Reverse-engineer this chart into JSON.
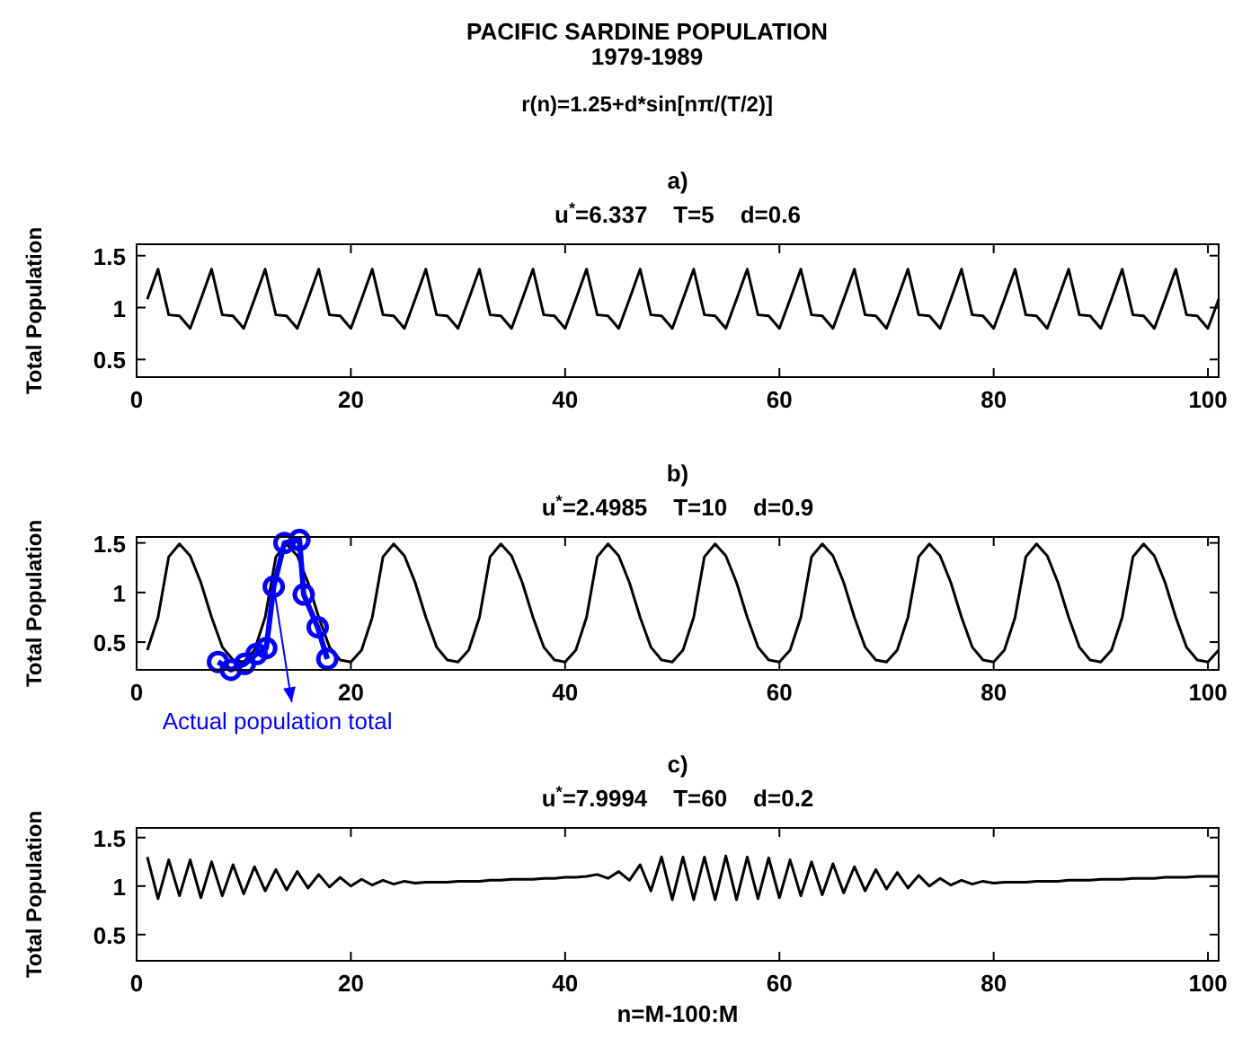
{
  "chart_data": [
    {
      "type": "line",
      "title": "a)",
      "subtitle": "u$^{*}$=6.337    T=5    d=0.6",
      "ylabel": "Total Population",
      "annotations": [
        "PACIFIC SARDINE POPULATION",
        "1979-1989",
        "r(n)=1.25+d*sin[nπ/(T/2)]"
      ],
      "x": [
        1,
        2,
        3,
        4,
        5,
        6,
        7,
        8,
        9,
        10,
        11,
        12,
        13,
        14,
        15,
        16,
        17,
        18,
        19,
        20,
        21,
        22,
        23,
        24,
        25,
        26,
        27,
        28,
        29,
        30,
        31,
        32,
        33,
        34,
        35,
        36,
        37,
        38,
        39,
        40,
        41,
        42,
        43,
        44,
        45,
        46,
        47,
        48,
        49,
        50,
        51,
        52,
        53,
        54,
        55,
        56,
        57,
        58,
        59,
        60,
        61,
        62,
        63,
        64,
        65,
        66,
        67,
        68,
        69,
        70,
        71,
        72,
        73,
        74,
        75,
        76,
        77,
        78,
        79,
        80,
        81,
        82,
        83,
        84,
        85,
        86,
        87,
        88,
        89,
        90,
        91,
        92,
        93,
        94,
        95,
        96,
        97,
        98,
        99,
        100,
        101
      ],
      "series": [
        {
          "color": "#000000",
          "values": [
            1.08,
            1.37,
            0.93,
            0.92,
            0.8,
            1.08,
            1.37,
            0.93,
            0.92,
            0.8,
            1.08,
            1.37,
            0.93,
            0.92,
            0.8,
            1.08,
            1.37,
            0.93,
            0.92,
            0.8,
            1.08,
            1.37,
            0.93,
            0.92,
            0.8,
            1.08,
            1.37,
            0.93,
            0.92,
            0.8,
            1.08,
            1.37,
            0.93,
            0.92,
            0.8,
            1.08,
            1.37,
            0.93,
            0.92,
            0.8,
            1.08,
            1.37,
            0.93,
            0.92,
            0.8,
            1.08,
            1.37,
            0.93,
            0.92,
            0.8,
            1.08,
            1.37,
            0.93,
            0.92,
            0.8,
            1.08,
            1.37,
            0.93,
            0.92,
            0.8,
            1.08,
            1.37,
            0.93,
            0.92,
            0.8,
            1.08,
            1.37,
            0.93,
            0.92,
            0.8,
            1.08,
            1.37,
            0.93,
            0.92,
            0.8,
            1.08,
            1.37,
            0.93,
            0.92,
            0.8,
            1.08,
            1.37,
            0.93,
            0.92,
            0.8,
            1.08,
            1.37,
            0.93,
            0.92,
            0.8,
            1.08,
            1.37,
            0.93,
            0.92,
            0.8,
            1.08,
            1.37,
            0.93,
            0.92,
            0.8,
            1.08
          ]
        }
      ],
      "xlim": [
        0,
        101
      ],
      "xticks": [
        0,
        20,
        40,
        60,
        80,
        100
      ],
      "ylim": [
        0.33,
        1.61
      ],
      "yticks": [
        0.5,
        1,
        1.5
      ],
      "grid": false
    },
    {
      "type": "line",
      "title": "b)",
      "subtitle": "u$^{*}$=2.4985    T=10    d=0.9",
      "ylabel": "Total Population",
      "annotations": [
        {
          "text": "Actual population total",
          "x": 12.8,
          "y": 1.06
        }
      ],
      "x": [
        1,
        2,
        3,
        4,
        5,
        6,
        7,
        8,
        9,
        10,
        11,
        12,
        13,
        14,
        15,
        16,
        17,
        18,
        19,
        20,
        21,
        22,
        23,
        24,
        25,
        26,
        27,
        28,
        29,
        30,
        31,
        32,
        33,
        34,
        35,
        36,
        37,
        38,
        39,
        40,
        41,
        42,
        43,
        44,
        45,
        46,
        47,
        48,
        49,
        50,
        51,
        52,
        53,
        54,
        55,
        56,
        57,
        58,
        59,
        60,
        61,
        62,
        63,
        64,
        65,
        66,
        67,
        68,
        69,
        70,
        71,
        72,
        73,
        74,
        75,
        76,
        77,
        78,
        79,
        80,
        81,
        82,
        83,
        84,
        85,
        86,
        87,
        88,
        89,
        90,
        91,
        92,
        93,
        94,
        95,
        96,
        97,
        98,
        99,
        100,
        101
      ],
      "series": [
        {
          "color": "#000000",
          "values": [
            0.42,
            0.75,
            1.36,
            1.49,
            1.37,
            1.1,
            0.75,
            0.45,
            0.32,
            0.3,
            0.42,
            0.75,
            1.36,
            1.49,
            1.37,
            1.1,
            0.75,
            0.45,
            0.32,
            0.3,
            0.42,
            0.75,
            1.36,
            1.49,
            1.37,
            1.1,
            0.75,
            0.45,
            0.32,
            0.3,
            0.42,
            0.75,
            1.36,
            1.49,
            1.37,
            1.1,
            0.75,
            0.45,
            0.32,
            0.3,
            0.42,
            0.75,
            1.36,
            1.49,
            1.37,
            1.1,
            0.75,
            0.45,
            0.32,
            0.3,
            0.42,
            0.75,
            1.36,
            1.49,
            1.37,
            1.1,
            0.75,
            0.45,
            0.32,
            0.3,
            0.42,
            0.75,
            1.36,
            1.49,
            1.37,
            1.1,
            0.75,
            0.45,
            0.32,
            0.3,
            0.42,
            0.75,
            1.36,
            1.49,
            1.37,
            1.1,
            0.75,
            0.45,
            0.32,
            0.3,
            0.42,
            0.75,
            1.36,
            1.49,
            1.37,
            1.1,
            0.75,
            0.45,
            0.32,
            0.3,
            0.42,
            0.75,
            1.36,
            1.49,
            1.37,
            1.1,
            0.75,
            0.45,
            0.32,
            0.3,
            0.42
          ]
        },
        {
          "color": "#0000ff",
          "marker": "circle",
          "x": [
            7.6,
            8.8,
            10.1,
            11.2,
            12.1,
            12.8,
            13.8,
            15.2,
            15.6,
            16.9,
            17.8
          ],
          "values": [
            0.3,
            0.22,
            0.28,
            0.38,
            0.44,
            1.06,
            1.5,
            1.53,
            0.98,
            0.65,
            0.33
          ]
        }
      ],
      "xlim": [
        0,
        101
      ],
      "xticks": [
        0,
        20,
        40,
        60,
        80,
        100
      ],
      "ylim": [
        0.22,
        1.56
      ],
      "yticks": [
        0.5,
        1,
        1.5
      ],
      "grid": false
    },
    {
      "type": "line",
      "title": "c)",
      "subtitle": "u$^{*}$=7.9994    T=60    d=0.2",
      "ylabel": "Total Population",
      "xlabel": "n=M-100:M",
      "x": [
        1,
        2,
        3,
        4,
        5,
        6,
        7,
        8,
        9,
        10,
        11,
        12,
        13,
        14,
        15,
        16,
        17,
        18,
        19,
        20,
        21,
        22,
        23,
        24,
        25,
        26,
        27,
        28,
        29,
        30,
        31,
        32,
        33,
        34,
        35,
        36,
        37,
        38,
        39,
        40,
        41,
        42,
        43,
        44,
        45,
        46,
        47,
        48,
        49,
        50,
        51,
        52,
        53,
        54,
        55,
        56,
        57,
        58,
        59,
        60,
        61,
        62,
        63,
        64,
        65,
        66,
        67,
        68,
        69,
        70,
        71,
        72,
        73,
        74,
        75,
        76,
        77,
        78,
        79,
        80,
        81,
        82,
        83,
        84,
        85,
        86,
        87,
        88,
        89,
        90,
        91,
        92,
        93,
        94,
        95,
        96,
        97,
        98,
        99,
        100,
        101
      ],
      "series": [
        {
          "color": "#000000",
          "values": [
            1.3,
            0.87,
            1.27,
            0.9,
            1.27,
            0.88,
            1.25,
            0.9,
            1.22,
            0.92,
            1.2,
            0.95,
            1.17,
            0.96,
            1.15,
            0.98,
            1.12,
            0.99,
            1.09,
            1.0,
            1.07,
            1.01,
            1.06,
            1.02,
            1.05,
            1.03,
            1.04,
            1.04,
            1.04,
            1.05,
            1.05,
            1.05,
            1.06,
            1.06,
            1.07,
            1.07,
            1.07,
            1.08,
            1.08,
            1.09,
            1.09,
            1.1,
            1.12,
            1.08,
            1.15,
            1.06,
            1.22,
            0.95,
            1.3,
            0.86,
            1.3,
            0.86,
            1.3,
            0.86,
            1.31,
            0.86,
            1.3,
            0.87,
            1.29,
            0.88,
            1.27,
            0.9,
            1.25,
            0.91,
            1.23,
            0.93,
            1.2,
            0.95,
            1.17,
            0.97,
            1.14,
            0.98,
            1.11,
            1.0,
            1.08,
            1.01,
            1.06,
            1.02,
            1.05,
            1.03,
            1.04,
            1.04,
            1.04,
            1.05,
            1.05,
            1.05,
            1.06,
            1.06,
            1.06,
            1.07,
            1.07,
            1.07,
            1.08,
            1.08,
            1.08,
            1.09,
            1.09,
            1.09,
            1.1,
            1.1,
            1.1
          ]
        }
      ],
      "xlim": [
        0,
        101
      ],
      "xticks": [
        0,
        20,
        40,
        60,
        80,
        100
      ],
      "ylim": [
        0.23,
        1.6
      ],
      "yticks": [
        0.5,
        1,
        1.5
      ],
      "grid": false
    }
  ]
}
